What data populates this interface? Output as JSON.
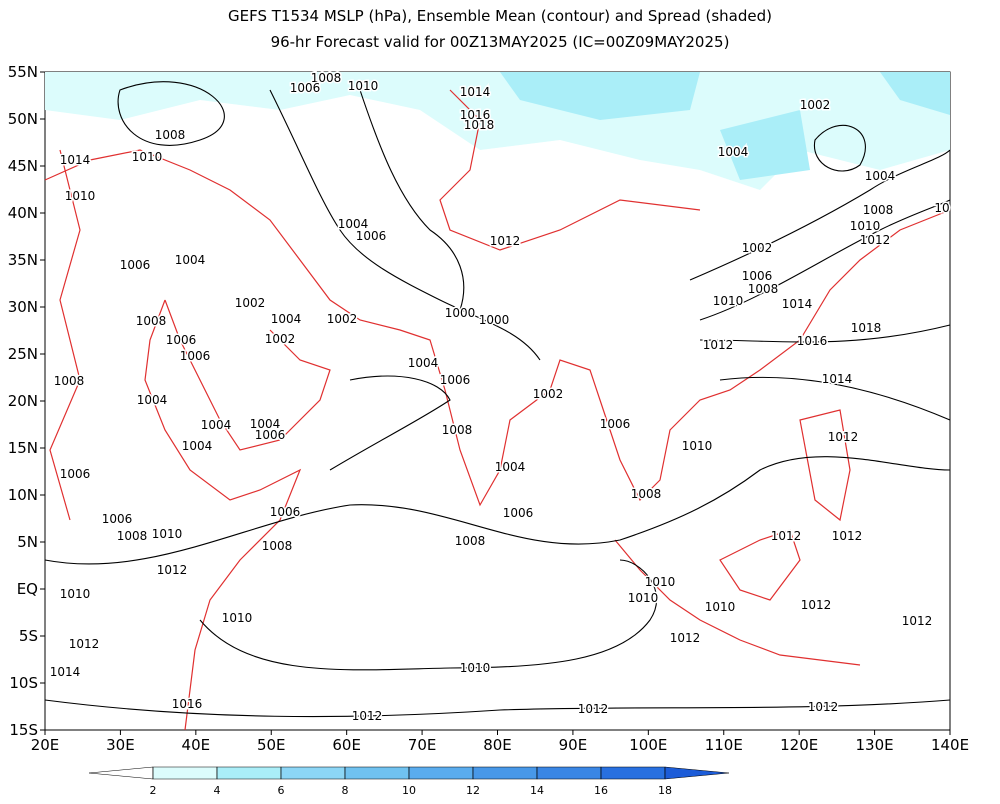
{
  "header": {
    "title": "GEFS T1534 MSLP (hPa), Ensemble Mean (contour) and Spread (shaded)",
    "subtitle": "96-hr Forecast valid for 00Z13MAY2025 (IC=00Z09MAY2025)"
  },
  "map": {
    "lat_labels": [
      "55N",
      "50N",
      "45N",
      "40N",
      "35N",
      "30N",
      "25N",
      "20N",
      "15N",
      "10N",
      "5N",
      "EQ",
      "5S",
      "10S",
      "15S"
    ],
    "lon_labels": [
      "20E",
      "30E",
      "40E",
      "50E",
      "60E",
      "70E",
      "80E",
      "90E",
      "100E",
      "110E",
      "120E",
      "130E",
      "140E"
    ],
    "contour_labels": [
      "1008",
      "1006",
      "1010",
      "1014",
      "1016",
      "1018",
      "1002",
      "1004",
      "1004",
      "1008",
      "1010",
      "1014",
      "1010",
      "1008",
      "10",
      "1010",
      "1012",
      "1004",
      "1006",
      "1012",
      "1002",
      "1006",
      "1008",
      "1010",
      "1014",
      "1018",
      "1006",
      "1004",
      "1002",
      "1004",
      "1002",
      "1008",
      "1000",
      "1000",
      "1006",
      "1002",
      "1006",
      "1012",
      "1016",
      "1004",
      "1006",
      "1008",
      "1004",
      "1014",
      "1002",
      "1004",
      "1004",
      "1006",
      "1006",
      "1008",
      "1004",
      "1012",
      "1010",
      "1006",
      "1004",
      "1008",
      "1006",
      "1006",
      "1006",
      "1008",
      "1010",
      "1012",
      "1012",
      "1008",
      "1008",
      "1012",
      "1010",
      "1010",
      "1010",
      "1010",
      "1012",
      "1010",
      "1012",
      "1012",
      "1012",
      "1010",
      "1014",
      "1016",
      "1012",
      "1012",
      "1012"
    ]
  },
  "colorbar": {
    "ticks": [
      2,
      4,
      6,
      8,
      10,
      12,
      14,
      16,
      18
    ],
    "colors": [
      "#ffffff",
      "#dcfcfc",
      "#aaeef8",
      "#8cd6f6",
      "#70c2f0",
      "#5aacee",
      "#4898e8",
      "#3a86e4",
      "#2870e0",
      "#1c5cd8"
    ]
  }
}
